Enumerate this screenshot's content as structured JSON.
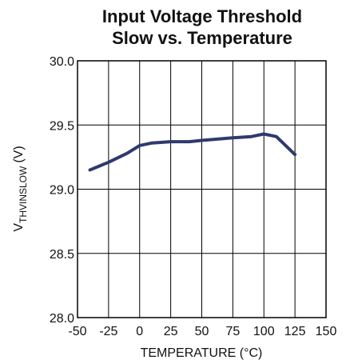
{
  "chart_data": {
    "type": "line",
    "title": [
      "Input Voltage Threshold",
      "Slow vs. Temperature"
    ],
    "x_label": "TEMPERATURE (°C)",
    "y_label": {
      "symbol": "V",
      "subscript": "THVINSLOW",
      "unit": "(V)"
    },
    "x": [
      -40,
      -25,
      -10,
      0,
      10,
      25,
      40,
      50,
      75,
      90,
      100,
      110,
      125
    ],
    "series": [
      {
        "color": "#2e3a6e",
        "values": [
          29.15,
          29.21,
          29.28,
          29.34,
          29.36,
          29.37,
          29.37,
          29.38,
          29.4,
          29.41,
          29.43,
          29.41,
          29.27
        ]
      }
    ],
    "xlim": [
      -50,
      150
    ],
    "xticks": [
      -50,
      -25,
      0,
      25,
      50,
      75,
      100,
      125,
      150
    ],
    "ylim": [
      28,
      30
    ],
    "yticks": [
      {
        "value": 28,
        "label": "28.0"
      },
      28.5,
      {
        "value": 29,
        "label": "29.0"
      },
      29.5,
      {
        "value": 30,
        "label": "30.0"
      }
    ],
    "grid": true
  }
}
